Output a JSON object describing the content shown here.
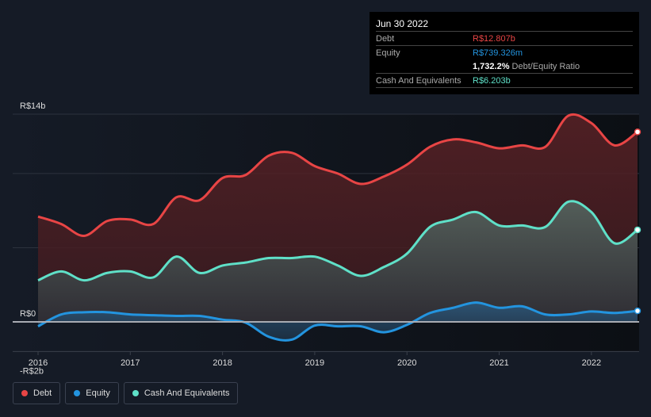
{
  "tooltip": {
    "date": "Jun 30 2022",
    "debt_label": "Debt",
    "debt_value": "R$12.807b",
    "equity_label": "Equity",
    "equity_value": "R$739.326m",
    "ratio_value": "1,732.2%",
    "ratio_label": "Debt/Equity Ratio",
    "cash_label": "Cash And Equivalents",
    "cash_value": "R$6.203b"
  },
  "legend": [
    {
      "label": "Debt",
      "color": "#e84545"
    },
    {
      "label": "Equity",
      "color": "#2394df"
    },
    {
      "label": "Cash And Equivalents",
      "color": "#5fe0c8"
    }
  ],
  "chart_data": {
    "type": "area",
    "ylim": [
      -2,
      14
    ],
    "y_tick_labels": [
      {
        "v": 14,
        "label": "R$14b"
      },
      {
        "v": 0,
        "label": "R$0"
      },
      {
        "v": -2,
        "label": "-R$2b"
      }
    ],
    "gridlines": [
      5,
      10,
      14
    ],
    "x_tick_labels": [
      "2016",
      "2017",
      "2018",
      "2019",
      "2020",
      "2021",
      "2022"
    ],
    "x_ticks": [
      2016,
      2017,
      2018,
      2019,
      2020,
      2021,
      2022
    ],
    "xlim": [
      2016,
      2022.5
    ],
    "x": [
      2016,
      2016.25,
      2016.5,
      2016.75,
      2017,
      2017.25,
      2017.5,
      2017.75,
      2018,
      2018.25,
      2018.5,
      2018.75,
      2019,
      2019.25,
      2019.5,
      2019.75,
      2020,
      2020.25,
      2020.5,
      2020.75,
      2021,
      2021.25,
      2021.5,
      2021.75,
      2022,
      2022.25,
      2022.5
    ],
    "series": [
      {
        "name": "Debt",
        "color": "#e84545",
        "values": [
          7.1,
          6.6,
          5.8,
          6.8,
          6.9,
          6.6,
          8.4,
          8.2,
          9.7,
          9.9,
          11.2,
          11.4,
          10.5,
          10.0,
          9.3,
          9.8,
          10.6,
          11.8,
          12.3,
          12.1,
          11.7,
          11.9,
          11.8,
          13.9,
          13.4,
          11.9,
          12.807
        ]
      },
      {
        "name": "Cash And Equivalents",
        "color": "#5fe0c8",
        "values": [
          2.8,
          3.4,
          2.8,
          3.3,
          3.4,
          3.0,
          4.4,
          3.3,
          3.8,
          4.0,
          4.3,
          4.3,
          4.4,
          3.8,
          3.1,
          3.7,
          4.6,
          6.4,
          6.9,
          7.4,
          6.5,
          6.5,
          6.4,
          8.1,
          7.4,
          5.3,
          6.203
        ]
      },
      {
        "name": "Equity",
        "color": "#2394df",
        "values": [
          -0.3,
          0.5,
          0.65,
          0.65,
          0.5,
          0.45,
          0.4,
          0.4,
          0.15,
          -0.05,
          -1.0,
          -1.2,
          -0.25,
          -0.3,
          -0.3,
          -0.7,
          -0.2,
          0.6,
          0.95,
          1.3,
          0.95,
          1.05,
          0.5,
          0.5,
          0.7,
          0.6,
          0.739
        ]
      }
    ]
  }
}
